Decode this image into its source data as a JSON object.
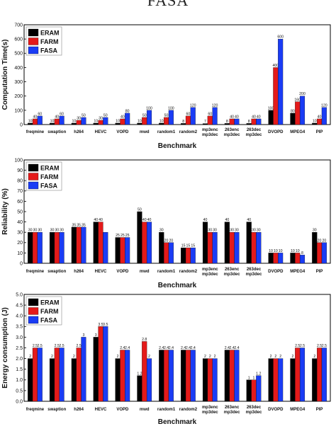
{
  "page": {
    "caption": "FASA"
  },
  "colors": {
    "ERAM": "#000000",
    "FARM": "#e41a1a",
    "FASA": "#1a3cf5"
  },
  "chart_data": [
    {
      "type": "bar",
      "xlabel": "Benchmark",
      "ylabel": "Computation Time(s)",
      "ylim": [
        0,
        700
      ],
      "yticks": [
        0,
        100,
        200,
        300,
        400,
        500,
        600,
        700
      ],
      "categories": [
        "freqmine",
        "swaption",
        "h264",
        "HEVC",
        "VOPD",
        "mwd",
        "random1",
        "random2",
        "mp3enc\nmp3dec",
        "263enc\nmp3dec",
        "263dec\nmp3dec",
        "DVOPD",
        "MPEG4",
        "PIP"
      ],
      "legend": "top-left",
      "series": [
        {
          "name": "ERAM",
          "values": [
            10,
            10,
            10,
            10,
            10,
            10,
            10,
            8,
            7,
            8,
            8,
            100,
            80,
            10
          ]
        },
        {
          "name": "FARM",
          "values": [
            40,
            40,
            30,
            30,
            40,
            50,
            50,
            60,
            60,
            40,
            40,
            400,
            160,
            40
          ]
        },
        {
          "name": "FASA",
          "values": [
            60,
            60,
            50,
            50,
            80,
            100,
            100,
            120,
            120,
            40,
            40,
            600,
            200,
            120
          ]
        }
      ]
    },
    {
      "type": "bar",
      "xlabel": "Benchmark",
      "ylabel": "Reliability (%)",
      "ylim": [
        0,
        100
      ],
      "yticks": [
        0,
        10,
        20,
        30,
        40,
        50,
        60,
        70,
        80,
        90,
        100
      ],
      "categories": [
        "freqmine",
        "swaption",
        "h264",
        "HEVC",
        "VOPD",
        "mwd",
        "random1",
        "random2",
        "mp3enc\nmp3dec",
        "263enc\nmp3dec",
        "263dec\nmp3dec",
        "DVOPD",
        "MPEG4",
        "PIP"
      ],
      "legend": "top-left",
      "series": [
        {
          "name": "ERAM",
          "values": [
            30,
            30,
            35,
            40,
            25,
            50,
            30,
            15,
            40,
            40,
            40,
            10,
            10,
            30
          ]
        },
        {
          "name": "FARM",
          "values": [
            30,
            30,
            35,
            40,
            25,
            40,
            20,
            15,
            30,
            30,
            30,
            10,
            10,
            20
          ]
        },
        {
          "name": "FASA",
          "values": [
            30,
            30,
            35,
            30,
            25,
            40,
            20,
            15,
            30,
            30,
            30,
            10,
            8,
            20
          ]
        }
      ],
      "data_labels": [
        [
          "30",
          "30",
          "35",
          "40",
          "25",
          "50",
          "30",
          "15",
          "40",
          "40",
          "40",
          "10",
          "10",
          "30"
        ],
        [
          "30",
          "30",
          "35",
          "40",
          "25",
          "40",
          "20",
          "15",
          "30",
          "30",
          "30",
          "10",
          "10",
          "20"
        ],
        [
          "30",
          "30",
          "35",
          "",
          "25",
          "40",
          "20",
          "15",
          "30",
          "30",
          "30",
          "10",
          "8",
          "20"
        ]
      ]
    },
    {
      "type": "bar",
      "xlabel": "Benchmark",
      "ylabel": "Energy consumption (J)",
      "ylim": [
        0,
        5.0
      ],
      "yticks": [
        0.0,
        0.5,
        1.0,
        1.5,
        2.0,
        2.5,
        3.0,
        3.5,
        4.0,
        4.5,
        5.0
      ],
      "categories": [
        "freqmine",
        "swaption",
        "h264",
        "HEVC",
        "VOPD",
        "mwd",
        "random1",
        "random2",
        "mp3enc\nmp3dec",
        "263enc\nmp3dec",
        "263dec\nmp3dec",
        "DVOPD",
        "MPEG4",
        "PIP"
      ],
      "legend": "top-left",
      "series": [
        {
          "name": "ERAM",
          "values": [
            2,
            2,
            2,
            3,
            2,
            1.2,
            2.4,
            2.4,
            2,
            2.4,
            1,
            2,
            2,
            2
          ]
        },
        {
          "name": "FARM",
          "values": [
            2.5,
            2.5,
            2.5,
            3.5,
            2.4,
            2.8,
            2.4,
            2.4,
            2,
            2.4,
            1,
            2,
            2.5,
            2.5
          ]
        },
        {
          "name": "FASA",
          "values": [
            2.5,
            2.5,
            3,
            3.5,
            2.4,
            2,
            2.4,
            2.4,
            2,
            2.4,
            1.2,
            2,
            2.5,
            2.5
          ]
        }
      ]
    }
  ]
}
